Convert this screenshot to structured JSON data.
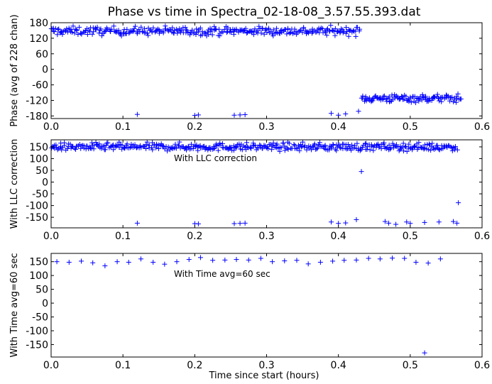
{
  "chart_data": [
    {
      "type": "scatter",
      "title": "Phase vs time in Spectra_02-18-08_3.57.55.393.dat",
      "ylabel": "Phase (avg of 228 chan)",
      "xlabel": "",
      "annotation": "",
      "xlim": [
        0.0,
        0.6
      ],
      "ylim": [
        -190,
        180
      ],
      "xticks": [
        "0.0",
        "0.1",
        "0.2",
        "0.3",
        "0.4",
        "0.5",
        "0.6"
      ],
      "yticks": [
        "180",
        "120",
        "60",
        "0",
        "-60",
        "-120",
        "-180"
      ],
      "marker": "+",
      "color": "#0000ff",
      "segments": [
        {
          "x_start": 0.0,
          "x_end": 0.43,
          "n": 320,
          "center": 148,
          "spread": 14
        },
        {
          "x_start": 0.432,
          "x_end": 0.57,
          "n": 120,
          "center": -112,
          "spread": 13
        }
      ],
      "outliers": [
        [
          0.12,
          -174
        ],
        [
          0.2,
          -178
        ],
        [
          0.205,
          -176
        ],
        [
          0.255,
          -177
        ],
        [
          0.263,
          -176
        ],
        [
          0.27,
          -175
        ],
        [
          0.39,
          -170
        ],
        [
          0.4,
          -177
        ],
        [
          0.41,
          -172
        ],
        [
          0.428,
          -162
        ]
      ]
    },
    {
      "type": "scatter",
      "title": "",
      "ylabel": "With LLC correction",
      "xlabel": "",
      "annotation": "With LLC correction",
      "xlim": [
        0.0,
        0.6
      ],
      "ylim": [
        -195,
        180
      ],
      "xticks": [
        "0.0",
        "0.1",
        "0.2",
        "0.3",
        "0.4",
        "0.5",
        "0.6"
      ],
      "yticks": [
        "150",
        "100",
        "50",
        "0",
        "-50",
        "-100",
        "-150"
      ],
      "marker": "+",
      "color": "#0000ff",
      "segments": [
        {
          "x_start": 0.0,
          "x_end": 0.565,
          "n": 440,
          "center": 150,
          "spread": 14
        }
      ],
      "outliers": [
        [
          0.12,
          -175
        ],
        [
          0.2,
          -177
        ],
        [
          0.205,
          -178
        ],
        [
          0.255,
          -177
        ],
        [
          0.263,
          -176
        ],
        [
          0.27,
          -175
        ],
        [
          0.39,
          -170
        ],
        [
          0.4,
          -176
        ],
        [
          0.41,
          -174
        ],
        [
          0.425,
          -160
        ],
        [
          0.432,
          45
        ],
        [
          0.465,
          -168
        ],
        [
          0.47,
          -175
        ],
        [
          0.48,
          -180
        ],
        [
          0.495,
          -170
        ],
        [
          0.5,
          -176
        ],
        [
          0.52,
          -172
        ],
        [
          0.54,
          -170
        ],
        [
          0.56,
          -168
        ],
        [
          0.565,
          -175
        ],
        [
          0.567,
          -88
        ]
      ]
    },
    {
      "type": "scatter",
      "title": "",
      "ylabel": "With Time avg=60 sec",
      "xlabel": "Time since start (hours)",
      "annotation": "With Time avg=60 sec",
      "xlim": [
        0.0,
        0.6
      ],
      "ylim": [
        -195,
        180
      ],
      "xticks": [
        "0.0",
        "0.1",
        "0.2",
        "0.3",
        "0.4",
        "0.5",
        "0.6"
      ],
      "yticks": [
        "150",
        "100",
        "50",
        "0",
        "-50",
        "-100",
        "-150"
      ],
      "marker": "+",
      "color": "#0000ff",
      "points": [
        [
          0.008,
          150
        ],
        [
          0.025,
          148
        ],
        [
          0.042,
          152
        ],
        [
          0.058,
          146
        ],
        [
          0.075,
          135
        ],
        [
          0.092,
          150
        ],
        [
          0.108,
          148
        ],
        [
          0.125,
          160
        ],
        [
          0.142,
          148
        ],
        [
          0.158,
          141
        ],
        [
          0.175,
          150
        ],
        [
          0.192,
          158
        ],
        [
          0.208,
          165
        ],
        [
          0.225,
          155
        ],
        [
          0.242,
          156
        ],
        [
          0.258,
          158
        ],
        [
          0.275,
          156
        ],
        [
          0.292,
          162
        ],
        [
          0.308,
          150
        ],
        [
          0.325,
          153
        ],
        [
          0.342,
          155
        ],
        [
          0.358,
          142
        ],
        [
          0.375,
          148
        ],
        [
          0.392,
          152
        ],
        [
          0.408,
          155
        ],
        [
          0.425,
          156
        ],
        [
          0.442,
          162
        ],
        [
          0.458,
          160
        ],
        [
          0.475,
          163
        ],
        [
          0.492,
          162
        ],
        [
          0.508,
          148
        ],
        [
          0.525,
          145
        ],
        [
          0.542,
          160
        ],
        [
          0.52,
          -180
        ]
      ]
    }
  ]
}
